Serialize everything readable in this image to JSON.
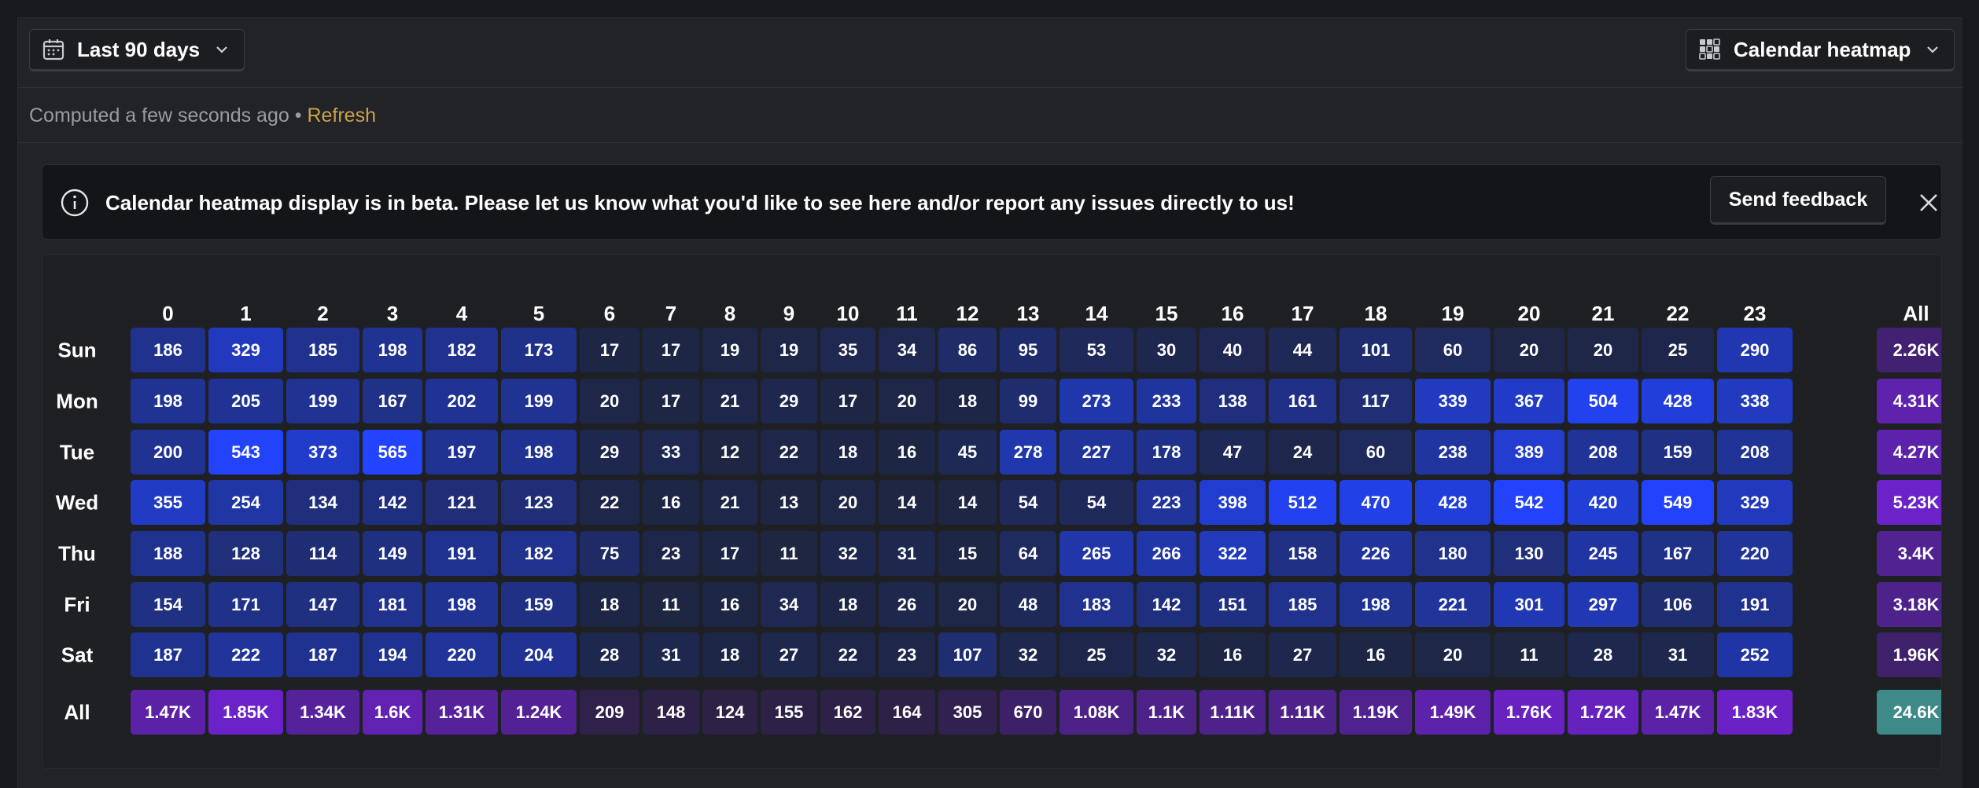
{
  "toolbar": {
    "date_range_label": "Last 90 days",
    "display_label": "Calendar heatmap"
  },
  "status": {
    "computed_text": "Computed a few seconds ago",
    "separator": "•",
    "refresh_label": "Refresh"
  },
  "banner": {
    "message": "Calendar heatmap display is in beta. Please let us know what you'd like to see here and/or report any issues directly to us!",
    "feedback_label": "Send feedback"
  },
  "icons": {
    "date_range": "calendar-icon",
    "display": "grid-icon",
    "chevron": "chevron-down-icon",
    "info": "info-icon",
    "close": "close-icon"
  },
  "colors": {
    "cell_low": "#1e2438",
    "cell_high": "#2244ff",
    "total_low": "#2a2140",
    "total_high": "#6b22c8",
    "grand_total": "#3d8a88",
    "refresh": "#c9a24a"
  },
  "chart_data": {
    "type": "heatmap",
    "x_labels": [
      "0",
      "1",
      "2",
      "3",
      "4",
      "5",
      "6",
      "7",
      "8",
      "9",
      "10",
      "11",
      "12",
      "13",
      "14",
      "15",
      "16",
      "17",
      "18",
      "19",
      "20",
      "21",
      "22",
      "23"
    ],
    "y_labels": [
      "Sun",
      "Mon",
      "Tue",
      "Wed",
      "Thu",
      "Fri",
      "Sat"
    ],
    "total_label": "All",
    "values": [
      [
        186,
        329,
        185,
        198,
        182,
        173,
        17,
        17,
        19,
        19,
        35,
        34,
        86,
        95,
        53,
        30,
        40,
        44,
        101,
        60,
        20,
        20,
        25,
        290
      ],
      [
        198,
        205,
        199,
        167,
        202,
        199,
        20,
        17,
        21,
        29,
        17,
        20,
        18,
        99,
        273,
        233,
        138,
        161,
        117,
        339,
        367,
        504,
        428,
        338
      ],
      [
        200,
        543,
        373,
        565,
        197,
        198,
        29,
        33,
        12,
        22,
        18,
        16,
        45,
        278,
        227,
        178,
        47,
        24,
        60,
        238,
        389,
        208,
        159,
        208
      ],
      [
        355,
        254,
        134,
        142,
        121,
        123,
        22,
        16,
        21,
        13,
        20,
        14,
        14,
        54,
        54,
        223,
        398,
        512,
        470,
        428,
        542,
        420,
        549,
        329
      ],
      [
        188,
        128,
        114,
        149,
        191,
        182,
        75,
        23,
        17,
        11,
        32,
        31,
        15,
        64,
        265,
        266,
        322,
        158,
        226,
        180,
        130,
        245,
        167,
        220
      ],
      [
        154,
        171,
        147,
        181,
        198,
        159,
        18,
        11,
        16,
        34,
        18,
        26,
        20,
        48,
        183,
        142,
        151,
        185,
        198,
        221,
        301,
        297,
        106,
        191
      ],
      [
        187,
        222,
        187,
        194,
        220,
        204,
        28,
        31,
        18,
        27,
        22,
        23,
        107,
        32,
        25,
        32,
        16,
        27,
        16,
        20,
        11,
        28,
        31,
        252
      ]
    ],
    "row_totals": [
      "2.26K",
      "4.31K",
      "4.27K",
      "5.23K",
      "3.4K",
      "3.18K",
      "1.96K"
    ],
    "row_total_values": [
      2260,
      4310,
      4270,
      5230,
      3400,
      3180,
      1960
    ],
    "col_totals": [
      "1.47K",
      "1.85K",
      "1.34K",
      "1.6K",
      "1.31K",
      "1.24K",
      "209",
      "148",
      "124",
      "155",
      "162",
      "164",
      "305",
      "670",
      "1.08K",
      "1.1K",
      "1.11K",
      "1.11K",
      "1.19K",
      "1.49K",
      "1.76K",
      "1.72K",
      "1.47K",
      "1.83K"
    ],
    "col_total_values": [
      1470,
      1850,
      1340,
      1600,
      1310,
      1240,
      209,
      148,
      124,
      155,
      162,
      164,
      305,
      670,
      1080,
      1100,
      1110,
      1110,
      1190,
      1490,
      1760,
      1720,
      1470,
      1830
    ],
    "grand_total": "24.6K"
  }
}
